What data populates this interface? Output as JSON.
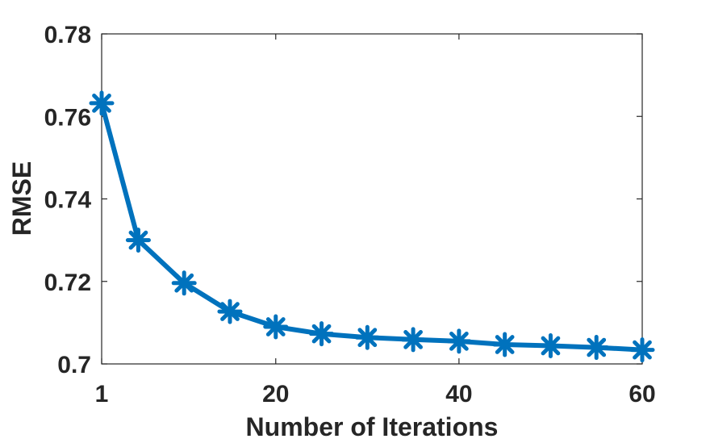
{
  "chart_data": {
    "type": "line",
    "xlabel": "Number of Iterations",
    "ylabel": "RMSE",
    "xlim": [
      1,
      60
    ],
    "ylim": [
      0.7,
      0.78
    ],
    "x_ticks": [
      1,
      20,
      40,
      60
    ],
    "x_tick_labels": [
      "1",
      "20",
      "40",
      "60"
    ],
    "y_ticks": [
      0.7,
      0.72,
      0.74,
      0.76,
      0.78
    ],
    "y_tick_labels": [
      "0.7",
      "0.72",
      "0.74",
      "0.76",
      "0.78"
    ],
    "grid": false,
    "series": [
      {
        "marker": "asterisk",
        "color": "#0072BD",
        "x": [
          1,
          5,
          10,
          15,
          20,
          25,
          30,
          35,
          40,
          45,
          50,
          55,
          60
        ],
        "y": [
          0.7632,
          0.73,
          0.7196,
          0.7127,
          0.709,
          0.7073,
          0.7064,
          0.7059,
          0.7055,
          0.7047,
          0.7044,
          0.704,
          0.7034
        ]
      }
    ]
  }
}
